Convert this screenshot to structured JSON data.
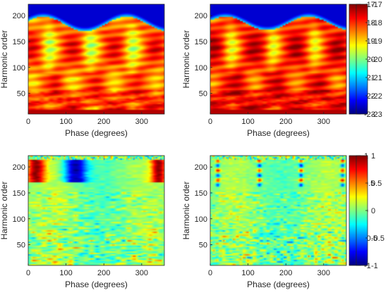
{
  "chart_data": [
    {
      "type": "heatmap",
      "panel": "top-left",
      "xlabel": "Phase (degrees)",
      "ylabel": "Harmonic order",
      "xlim": [
        0,
        360
      ],
      "ylim": [
        10,
        222
      ],
      "xticks": [
        "0",
        "100",
        "200",
        "300"
      ],
      "yticks": [
        "50",
        "100",
        "150",
        "200"
      ],
      "colorbar": {
        "range": [
          -23,
          -17
        ],
        "ticks": [
          "-17",
          "-18",
          "-19",
          "-20",
          "-21",
          "-22",
          "-23"
        ]
      },
      "colormap": "jet",
      "features": {
        "cutoff_base": 170,
        "cutoff_amplitude": 28,
        "cutoff_valleys_deg": [
          130,
          240,
          350
        ]
      }
    },
    {
      "type": "heatmap",
      "panel": "top-right",
      "xlabel": "Phase (degrees)",
      "ylabel": "Harmonic order",
      "xlim": [
        0,
        360
      ],
      "ylim": [
        10,
        222
      ],
      "xticks": [
        "0",
        "100",
        "200",
        "300"
      ],
      "yticks": [
        "50",
        "100",
        "150",
        "200"
      ],
      "colorbar": {
        "range": [
          -23,
          -17
        ],
        "ticks": [
          "-17",
          "-18",
          "-19",
          "-20",
          "-21",
          "-22",
          "-23"
        ]
      },
      "colormap": "jet",
      "features": {
        "cutoff_base": 172,
        "cutoff_amplitude": 26,
        "cutoff_valleys_deg": [
          130,
          240,
          350
        ]
      }
    },
    {
      "type": "heatmap",
      "panel": "bottom-left",
      "xlabel": "Phase (degrees)",
      "ylabel": "Harmonic order",
      "xlim": [
        0,
        360
      ],
      "ylim": [
        10,
        222
      ],
      "xticks": [
        "0",
        "100",
        "200",
        "300"
      ],
      "yticks": [
        "50",
        "100",
        "150",
        "200"
      ],
      "colorbar": {
        "range": [
          -1,
          1
        ],
        "ticks": [
          "1",
          "0.5",
          "0",
          "-0.5",
          "-1"
        ]
      },
      "colormap": "jet"
    },
    {
      "type": "heatmap",
      "panel": "bottom-right",
      "xlabel": "Phase (degrees)",
      "ylabel": "Harmonic order",
      "xlim": [
        0,
        360
      ],
      "ylim": [
        10,
        222
      ],
      "xticks": [
        "0",
        "100",
        "200",
        "300"
      ],
      "yticks": [
        "50",
        "100",
        "150",
        "200"
      ],
      "colorbar": {
        "range": [
          -1,
          1
        ],
        "ticks": [
          "1",
          "0.5",
          "0",
          "-0.5",
          "-1"
        ]
      },
      "colormap": "jet"
    }
  ]
}
